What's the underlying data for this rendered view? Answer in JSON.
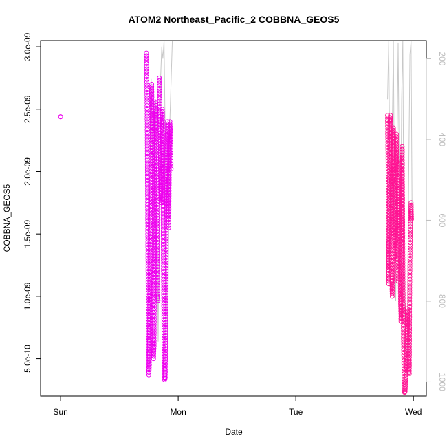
{
  "chart_data": {
    "type": "scatter",
    "title": "ATOM2 Northeast_Pacific_2 COBBNA_GEOS5",
    "xlabel": "Date",
    "ylabel": "COBBNA_GEOS5",
    "x_ticks": [
      {
        "label": "Sun",
        "day": 0
      },
      {
        "label": "Mon",
        "day": 1
      },
      {
        "label": "Tue",
        "day": 2
      },
      {
        "label": "Wed",
        "day": 3
      }
    ],
    "xlim_days": [
      -0.17,
      3.11
    ],
    "ylim": [
      2e-10,
      3.05e-09
    ],
    "y_ticks": [
      {
        "label": "5.0e-10",
        "value": 5e-10
      },
      {
        "label": "1.0e-09",
        "value": 1e-09
      },
      {
        "label": "1.5e-09",
        "value": 1.5e-09
      },
      {
        "label": "2.0e-09",
        "value": 2e-09
      },
      {
        "label": "2.5e-09",
        "value": 2.5e-09
      },
      {
        "label": "3.0e-09",
        "value": 3e-09
      }
    ],
    "y2_ticks": [
      {
        "label": "200",
        "value": 200
      },
      {
        "label": "400",
        "value": 400
      },
      {
        "label": "600",
        "value": 600
      },
      {
        "label": "800",
        "value": 800
      },
      {
        "label": "1000",
        "value": 1000
      }
    ],
    "y2lim": [
      1035,
      155
    ],
    "colors": {
      "series_a": "#ee00ee",
      "series_b": "#ff1493",
      "pressure": "#c8c8c8",
      "axis": "#000000"
    },
    "series": [
      {
        "name": "",
        "color": "#ee00ee",
        "segments": [
          {
            "x": [
              0.0,
              0.0
            ],
            "y": [
              2.44e-09,
              2.44e-09
            ]
          },
          {
            "x": [
              0.73,
              0.735,
              0.74,
              0.745,
              0.75,
              0.755,
              0.76,
              0.765,
              0.77,
              0.775,
              0.78,
              0.785,
              0.79,
              0.795,
              0.8,
              0.805,
              0.81,
              0.815,
              0.82,
              0.825,
              0.83
            ],
            "y": [
              2.95e-09,
              2.55e-09,
              1.8e-09,
              9e-10,
              3.7e-10,
              4.5e-10,
              1.2e-09,
              2e-09,
              2.6e-09,
              2.7e-09,
              2.3e-09,
              1.5e-09,
              5e-10,
              6e-10,
              1.4e-09,
              2.2e-09,
              2.55e-09,
              2.45e-09,
              1.8e-09,
              1e-09,
              9.5e-10
            ]
          },
          {
            "x": [
              0.84,
              0.845,
              0.85,
              0.855,
              0.86,
              0.865,
              0.87,
              0.875,
              0.88,
              0.885,
              0.89,
              0.895,
              0.9,
              0.905,
              0.91,
              0.915,
              0.92,
              0.925,
              0.93,
              0.935,
              0.94
            ],
            "y": [
              2.75e-09,
              2.4e-09,
              1.9e-09,
              1.75e-09,
              2.3e-09,
              2.5e-09,
              2e-09,
              1.2e-09,
              6e-10,
              3.3e-10,
              3.5e-10,
              9e-10,
              1.7e-09,
              2.2e-09,
              2.4e-09,
              2.05e-09,
              1.55e-09,
              2.1e-09,
              2.4e-09,
              2.3e-09,
              2e-09
            ]
          }
        ]
      },
      {
        "name": "",
        "color": "#ff1493",
        "segments": [
          {
            "x": [
              2.78,
              2.785,
              2.79,
              2.795,
              2.8,
              2.805,
              2.81,
              2.815,
              2.82,
              2.825,
              2.83,
              2.835,
              2.84,
              2.845,
              2.85,
              2.855,
              2.86,
              2.865,
              2.87
            ],
            "y": [
              2.45e-09,
              2e-09,
              1.1e-09,
              1.5e-09,
              2.4e-09,
              2.45e-09,
              1.9e-09,
              1.2e-09,
              1e-09,
              1.6e-09,
              2.35e-09,
              2.2e-09,
              1.7e-09,
              1.3e-09,
              1.9e-09,
              2.3e-09,
              1.95e-09,
              1.4e-09,
              1.1e-09
            ]
          },
          {
            "x": [
              2.88,
              2.885,
              2.89,
              2.895,
              2.9,
              2.905,
              2.91,
              2.915,
              2.92,
              2.925,
              2.93,
              2.935,
              2.94,
              2.945,
              2.95,
              2.955,
              2.96,
              2.965,
              2.97,
              2.975,
              2.98,
              2.985
            ],
            "y": [
              2.1e-09,
              1.5e-09,
              1e-09,
              8e-10,
              1.9e-09,
              2.2e-09,
              1.4e-09,
              7e-10,
              4e-10,
              2.3e-10,
              2.4e-10,
              3.5e-10,
              4.5e-10,
              7e-10,
              9e-10,
              5e-10,
              4e-10,
              3.8e-10,
              1.2e-09,
              1.6e-09,
              1.75e-09,
              1.6e-09
            ]
          }
        ]
      }
    ],
    "pressure_trace": {
      "name": "",
      "color": "#c8c8c8",
      "segments": [
        {
          "x": [
            0.76,
            0.77,
            0.78,
            0.79,
            0.8,
            0.81,
            0.82,
            0.83,
            0.84,
            0.85,
            0.86,
            0.87,
            0.88,
            0.89,
            0.9,
            0.91,
            0.92,
            0.93,
            0.94,
            0.95
          ],
          "y": [
            380,
            250,
            460,
            700,
            450,
            300,
            600,
            900,
            500,
            250,
            170,
            200,
            155,
            400,
            700,
            950,
            600,
            350,
            250,
            155
          ]
        },
        {
          "x": [
            2.78,
            2.79,
            2.8,
            2.81,
            2.82,
            2.83,
            2.84,
            2.85,
            2.86,
            2.87,
            2.88,
            2.89,
            2.9,
            2.91,
            2.92,
            2.93,
            2.94,
            2.95,
            2.96,
            2.97,
            2.98,
            2.99
          ],
          "y": [
            300,
            155,
            500,
            700,
            380,
            155,
            620,
            800,
            450,
            160,
            500,
            720,
            300,
            155,
            700,
            900,
            980,
            860,
            500,
            190,
            155,
            640
          ]
        }
      ]
    },
    "grid": false,
    "legend": "none"
  }
}
